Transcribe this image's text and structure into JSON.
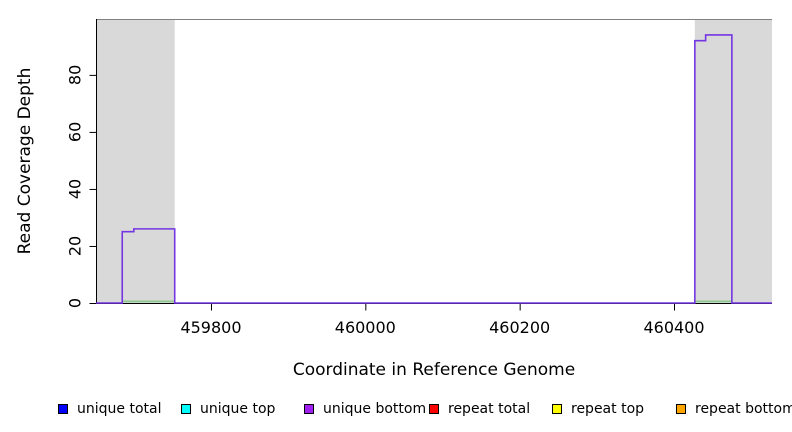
{
  "figure": {
    "background": "#ffffff",
    "plot_background": "#ffffff",
    "frame_color": "#808080"
  },
  "chart_data": {
    "type": "line",
    "subtype": "step-coverage",
    "title": "",
    "xlabel": "Coordinate in Reference Genome",
    "ylabel": "Read Coverage Depth",
    "xlim": [
      459651,
      460527
    ],
    "ylim": [
      0,
      99.6
    ],
    "xticks": [
      459800,
      460000,
      460200,
      460400
    ],
    "xtick_labels": [
      "459800",
      "460000",
      "460200",
      "460400"
    ],
    "yticks": [
      0,
      20,
      40,
      60,
      80
    ],
    "ytick_labels": [
      "0",
      "20",
      "40",
      "60",
      "80"
    ],
    "grid": false,
    "legend_position": "bottom",
    "shaded_regions": {
      "color": "#d9d9d9",
      "meaning": "highlighted repeat intervals",
      "ranges": [
        [
          459651,
          459753
        ],
        [
          460427,
          460527
        ]
      ]
    },
    "series": [
      {
        "name": "unique bottom coverage",
        "color": "#7436e3",
        "style": "step",
        "points": [
          [
            459651,
            0
          ],
          [
            459685,
            25
          ],
          [
            459700,
            26
          ],
          [
            459753,
            0
          ],
          [
            460427,
            92
          ],
          [
            460441,
            94
          ],
          [
            460475,
            0
          ],
          [
            460527,
            0
          ]
        ]
      },
      {
        "name": "baseline annotation",
        "color": "#90c990",
        "style": "segments-at-zero",
        "segments": [
          [
            459685,
            459753
          ],
          [
            460427,
            460475
          ]
        ]
      }
    ]
  },
  "legend": {
    "items": [
      {
        "label": "unique total",
        "color": "#0000ff"
      },
      {
        "label": "unique top",
        "color": "#00ffff"
      },
      {
        "label": "unique bottom",
        "color": "#a020f0"
      },
      {
        "label": "repeat total",
        "color": "#ff0000"
      },
      {
        "label": "repeat top",
        "color": "#ffff00"
      },
      {
        "label": "repeat bottom",
        "color": "#ffa500"
      }
    ]
  }
}
